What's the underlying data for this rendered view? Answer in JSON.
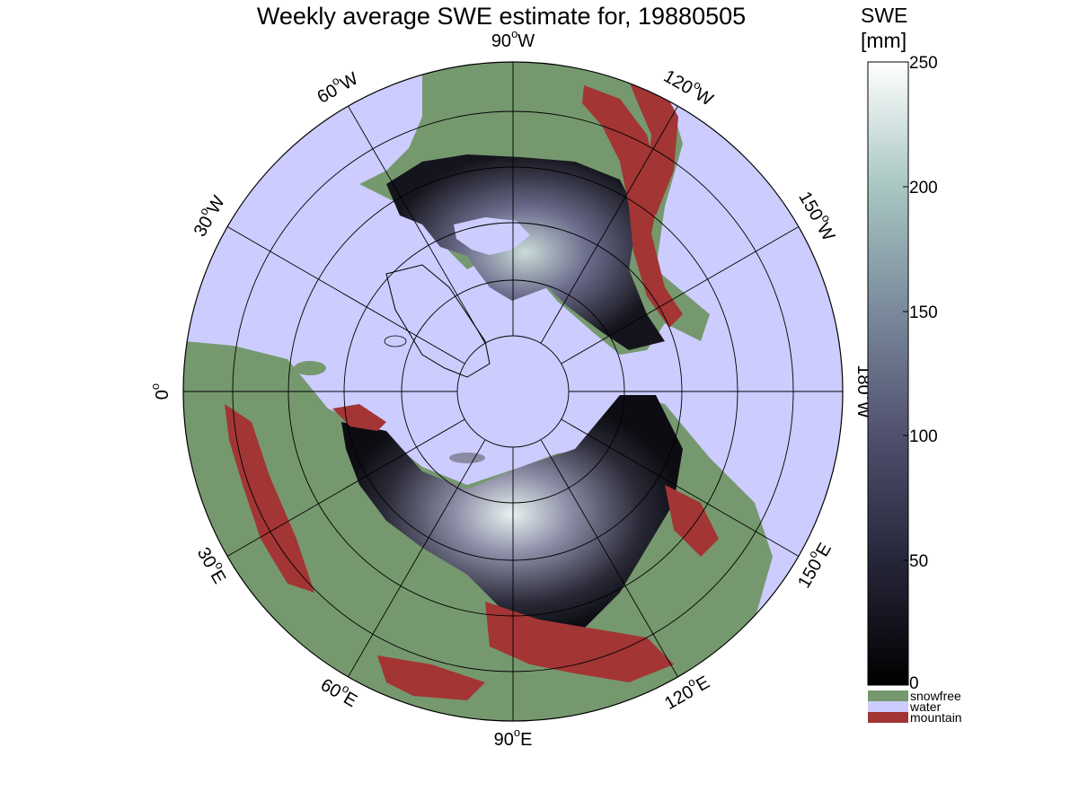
{
  "title": "Weekly average SWE estimate for, 19880505",
  "colorbar": {
    "label_line1": "SWE",
    "label_line2": "[mm]",
    "ticks": [
      "250",
      "200",
      "150",
      "100",
      "50",
      "0"
    ],
    "range": [
      0,
      250
    ],
    "categories": [
      {
        "label": "snowfree",
        "color": "#76986e"
      },
      {
        "label": "water",
        "color": "#ccccff"
      },
      {
        "label": "mountain",
        "color": "#a33535"
      }
    ]
  },
  "map": {
    "projection": "north-polar-stereographic",
    "longitude_labels": [
      {
        "deg": "90",
        "hem": "W"
      },
      {
        "deg": "120",
        "hem": "W"
      },
      {
        "deg": "150",
        "hem": "W"
      },
      {
        "deg": "180",
        "hem": "W"
      },
      {
        "deg": "150",
        "hem": "E"
      },
      {
        "deg": "120",
        "hem": "E"
      },
      {
        "deg": "90",
        "hem": "E"
      },
      {
        "deg": "60",
        "hem": "E"
      },
      {
        "deg": "30",
        "hem": "E"
      },
      {
        "deg": "0",
        "hem": ""
      },
      {
        "deg": "30",
        "hem": "W"
      },
      {
        "deg": "60",
        "hem": "W"
      }
    ],
    "colors": {
      "water": "#ccccff",
      "snowfree": "#76986e",
      "mountain": "#a33535",
      "snow_low": "#0a0a10",
      "snow_mid": "#5a5a7c",
      "snow_high": "#e6f2ef"
    }
  }
}
